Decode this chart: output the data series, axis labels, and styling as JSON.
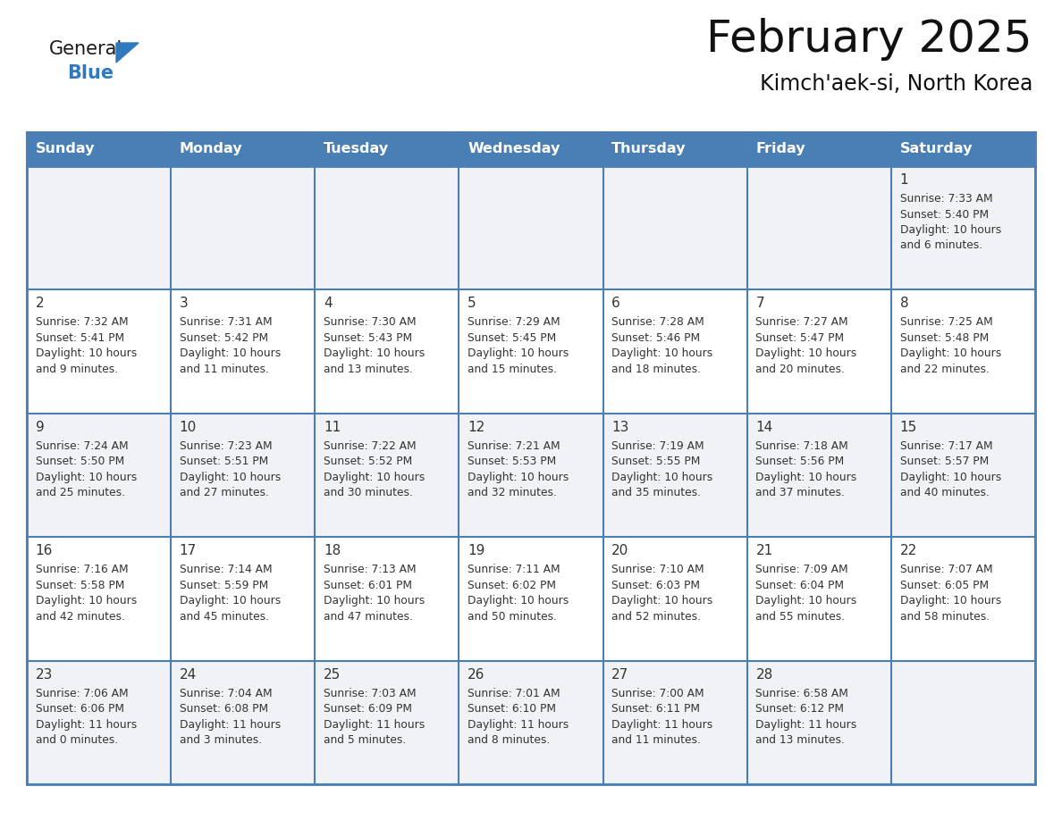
{
  "title": "February 2025",
  "subtitle": "Kimch'aek-si, North Korea",
  "days_of_week": [
    "Sunday",
    "Monday",
    "Tuesday",
    "Wednesday",
    "Thursday",
    "Friday",
    "Saturday"
  ],
  "header_bg": "#4a7fb5",
  "header_text": "#ffffff",
  "cell_bg_odd": "#f0f2f5",
  "cell_bg_even": "#ffffff",
  "border_color": "#4a7fb5",
  "text_color": "#333333",
  "title_color": "#111111",
  "line_color": "#4a7fb5",
  "calendar_data": [
    [
      null,
      null,
      null,
      null,
      null,
      null,
      {
        "day": "1",
        "sunrise": "7:33 AM",
        "sunset": "5:40 PM",
        "daylight": "10 hours\nand 6 minutes."
      }
    ],
    [
      {
        "day": "2",
        "sunrise": "7:32 AM",
        "sunset": "5:41 PM",
        "daylight": "10 hours\nand 9 minutes."
      },
      {
        "day": "3",
        "sunrise": "7:31 AM",
        "sunset": "5:42 PM",
        "daylight": "10 hours\nand 11 minutes."
      },
      {
        "day": "4",
        "sunrise": "7:30 AM",
        "sunset": "5:43 PM",
        "daylight": "10 hours\nand 13 minutes."
      },
      {
        "day": "5",
        "sunrise": "7:29 AM",
        "sunset": "5:45 PM",
        "daylight": "10 hours\nand 15 minutes."
      },
      {
        "day": "6",
        "sunrise": "7:28 AM",
        "sunset": "5:46 PM",
        "daylight": "10 hours\nand 18 minutes."
      },
      {
        "day": "7",
        "sunrise": "7:27 AM",
        "sunset": "5:47 PM",
        "daylight": "10 hours\nand 20 minutes."
      },
      {
        "day": "8",
        "sunrise": "7:25 AM",
        "sunset": "5:48 PM",
        "daylight": "10 hours\nand 22 minutes."
      }
    ],
    [
      {
        "day": "9",
        "sunrise": "7:24 AM",
        "sunset": "5:50 PM",
        "daylight": "10 hours\nand 25 minutes."
      },
      {
        "day": "10",
        "sunrise": "7:23 AM",
        "sunset": "5:51 PM",
        "daylight": "10 hours\nand 27 minutes."
      },
      {
        "day": "11",
        "sunrise": "7:22 AM",
        "sunset": "5:52 PM",
        "daylight": "10 hours\nand 30 minutes."
      },
      {
        "day": "12",
        "sunrise": "7:21 AM",
        "sunset": "5:53 PM",
        "daylight": "10 hours\nand 32 minutes."
      },
      {
        "day": "13",
        "sunrise": "7:19 AM",
        "sunset": "5:55 PM",
        "daylight": "10 hours\nand 35 minutes."
      },
      {
        "day": "14",
        "sunrise": "7:18 AM",
        "sunset": "5:56 PM",
        "daylight": "10 hours\nand 37 minutes."
      },
      {
        "day": "15",
        "sunrise": "7:17 AM",
        "sunset": "5:57 PM",
        "daylight": "10 hours\nand 40 minutes."
      }
    ],
    [
      {
        "day": "16",
        "sunrise": "7:16 AM",
        "sunset": "5:58 PM",
        "daylight": "10 hours\nand 42 minutes."
      },
      {
        "day": "17",
        "sunrise": "7:14 AM",
        "sunset": "5:59 PM",
        "daylight": "10 hours\nand 45 minutes."
      },
      {
        "day": "18",
        "sunrise": "7:13 AM",
        "sunset": "6:01 PM",
        "daylight": "10 hours\nand 47 minutes."
      },
      {
        "day": "19",
        "sunrise": "7:11 AM",
        "sunset": "6:02 PM",
        "daylight": "10 hours\nand 50 minutes."
      },
      {
        "day": "20",
        "sunrise": "7:10 AM",
        "sunset": "6:03 PM",
        "daylight": "10 hours\nand 52 minutes."
      },
      {
        "day": "21",
        "sunrise": "7:09 AM",
        "sunset": "6:04 PM",
        "daylight": "10 hours\nand 55 minutes."
      },
      {
        "day": "22",
        "sunrise": "7:07 AM",
        "sunset": "6:05 PM",
        "daylight": "10 hours\nand 58 minutes."
      }
    ],
    [
      {
        "day": "23",
        "sunrise": "7:06 AM",
        "sunset": "6:06 PM",
        "daylight": "11 hours\nand 0 minutes."
      },
      {
        "day": "24",
        "sunrise": "7:04 AM",
        "sunset": "6:08 PM",
        "daylight": "11 hours\nand 3 minutes."
      },
      {
        "day": "25",
        "sunrise": "7:03 AM",
        "sunset": "6:09 PM",
        "daylight": "11 hours\nand 5 minutes."
      },
      {
        "day": "26",
        "sunrise": "7:01 AM",
        "sunset": "6:10 PM",
        "daylight": "11 hours\nand 8 minutes."
      },
      {
        "day": "27",
        "sunrise": "7:00 AM",
        "sunset": "6:11 PM",
        "daylight": "11 hours\nand 11 minutes."
      },
      {
        "day": "28",
        "sunrise": "6:58 AM",
        "sunset": "6:12 PM",
        "daylight": "11 hours\nand 13 minutes."
      },
      null
    ]
  ],
  "logo_color_general": "#1a1a1a",
  "logo_color_blue": "#2f7abf"
}
